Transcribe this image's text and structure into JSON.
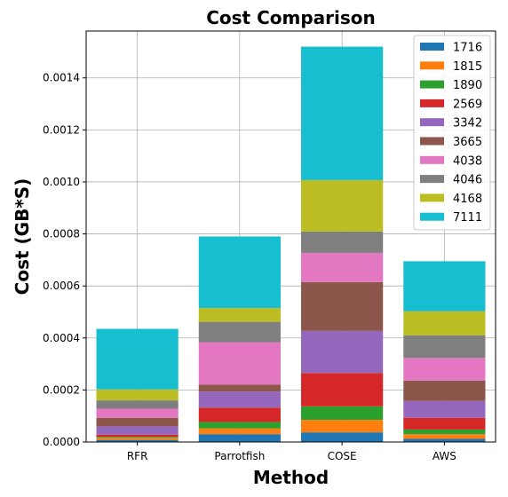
{
  "chart_data": {
    "type": "bar",
    "stacked": true,
    "title": "Cost Comparison",
    "xlabel": "Method",
    "ylabel": "Cost (GB*S)",
    "categories": [
      "RFR",
      "Parrotfish",
      "COSE",
      "AWS"
    ],
    "ylim": [
      0,
      0.00158
    ],
    "yticks": [
      "0.0000",
      "0.0002",
      "0.0004",
      "0.0006",
      "0.0008",
      "0.0010",
      "0.0012",
      "0.0014"
    ],
    "grid": true,
    "legend_position": "top-right",
    "series": [
      {
        "name": "1716",
        "color": "#1f77b4",
        "values": [
          8e-06,
          3e-05,
          3.7e-05,
          1.2e-05
        ]
      },
      {
        "name": "1815",
        "color": "#ff7f0e",
        "values": [
          8e-06,
          2.2e-05,
          4.8e-05,
          1.8e-05
        ]
      },
      {
        "name": "1890",
        "color": "#2ca02c",
        "values": [
          4e-06,
          2.5e-05,
          5.2e-05,
          1.8e-05
        ]
      },
      {
        "name": "2569",
        "color": "#d62728",
        "values": [
          8e-06,
          5.5e-05,
          0.000128,
          4.5e-05
        ]
      },
      {
        "name": "3342",
        "color": "#9467bd",
        "values": [
          3.2e-05,
          6.2e-05,
          0.000162,
          6.5e-05
        ]
      },
      {
        "name": "3665",
        "color": "#8c564b",
        "values": [
          3.3e-05,
          2.7e-05,
          0.000188,
          7.8e-05
        ]
      },
      {
        "name": "4038",
        "color": "#e377c2",
        "values": [
          3.5e-05,
          0.000163,
          0.000112,
          8.7e-05
        ]
      },
      {
        "name": "4046",
        "color": "#7f7f7f",
        "values": [
          3.2e-05,
          7.8e-05,
          8.2e-05,
          8.7e-05
        ]
      },
      {
        "name": "4168",
        "color": "#bcbd22",
        "values": [
          4.2e-05,
          5.3e-05,
          0.000198,
          9.3e-05
        ]
      },
      {
        "name": "7111",
        "color": "#17becf",
        "values": [
          0.000233,
          0.000275,
          0.000513,
          0.000192
        ]
      }
    ]
  }
}
